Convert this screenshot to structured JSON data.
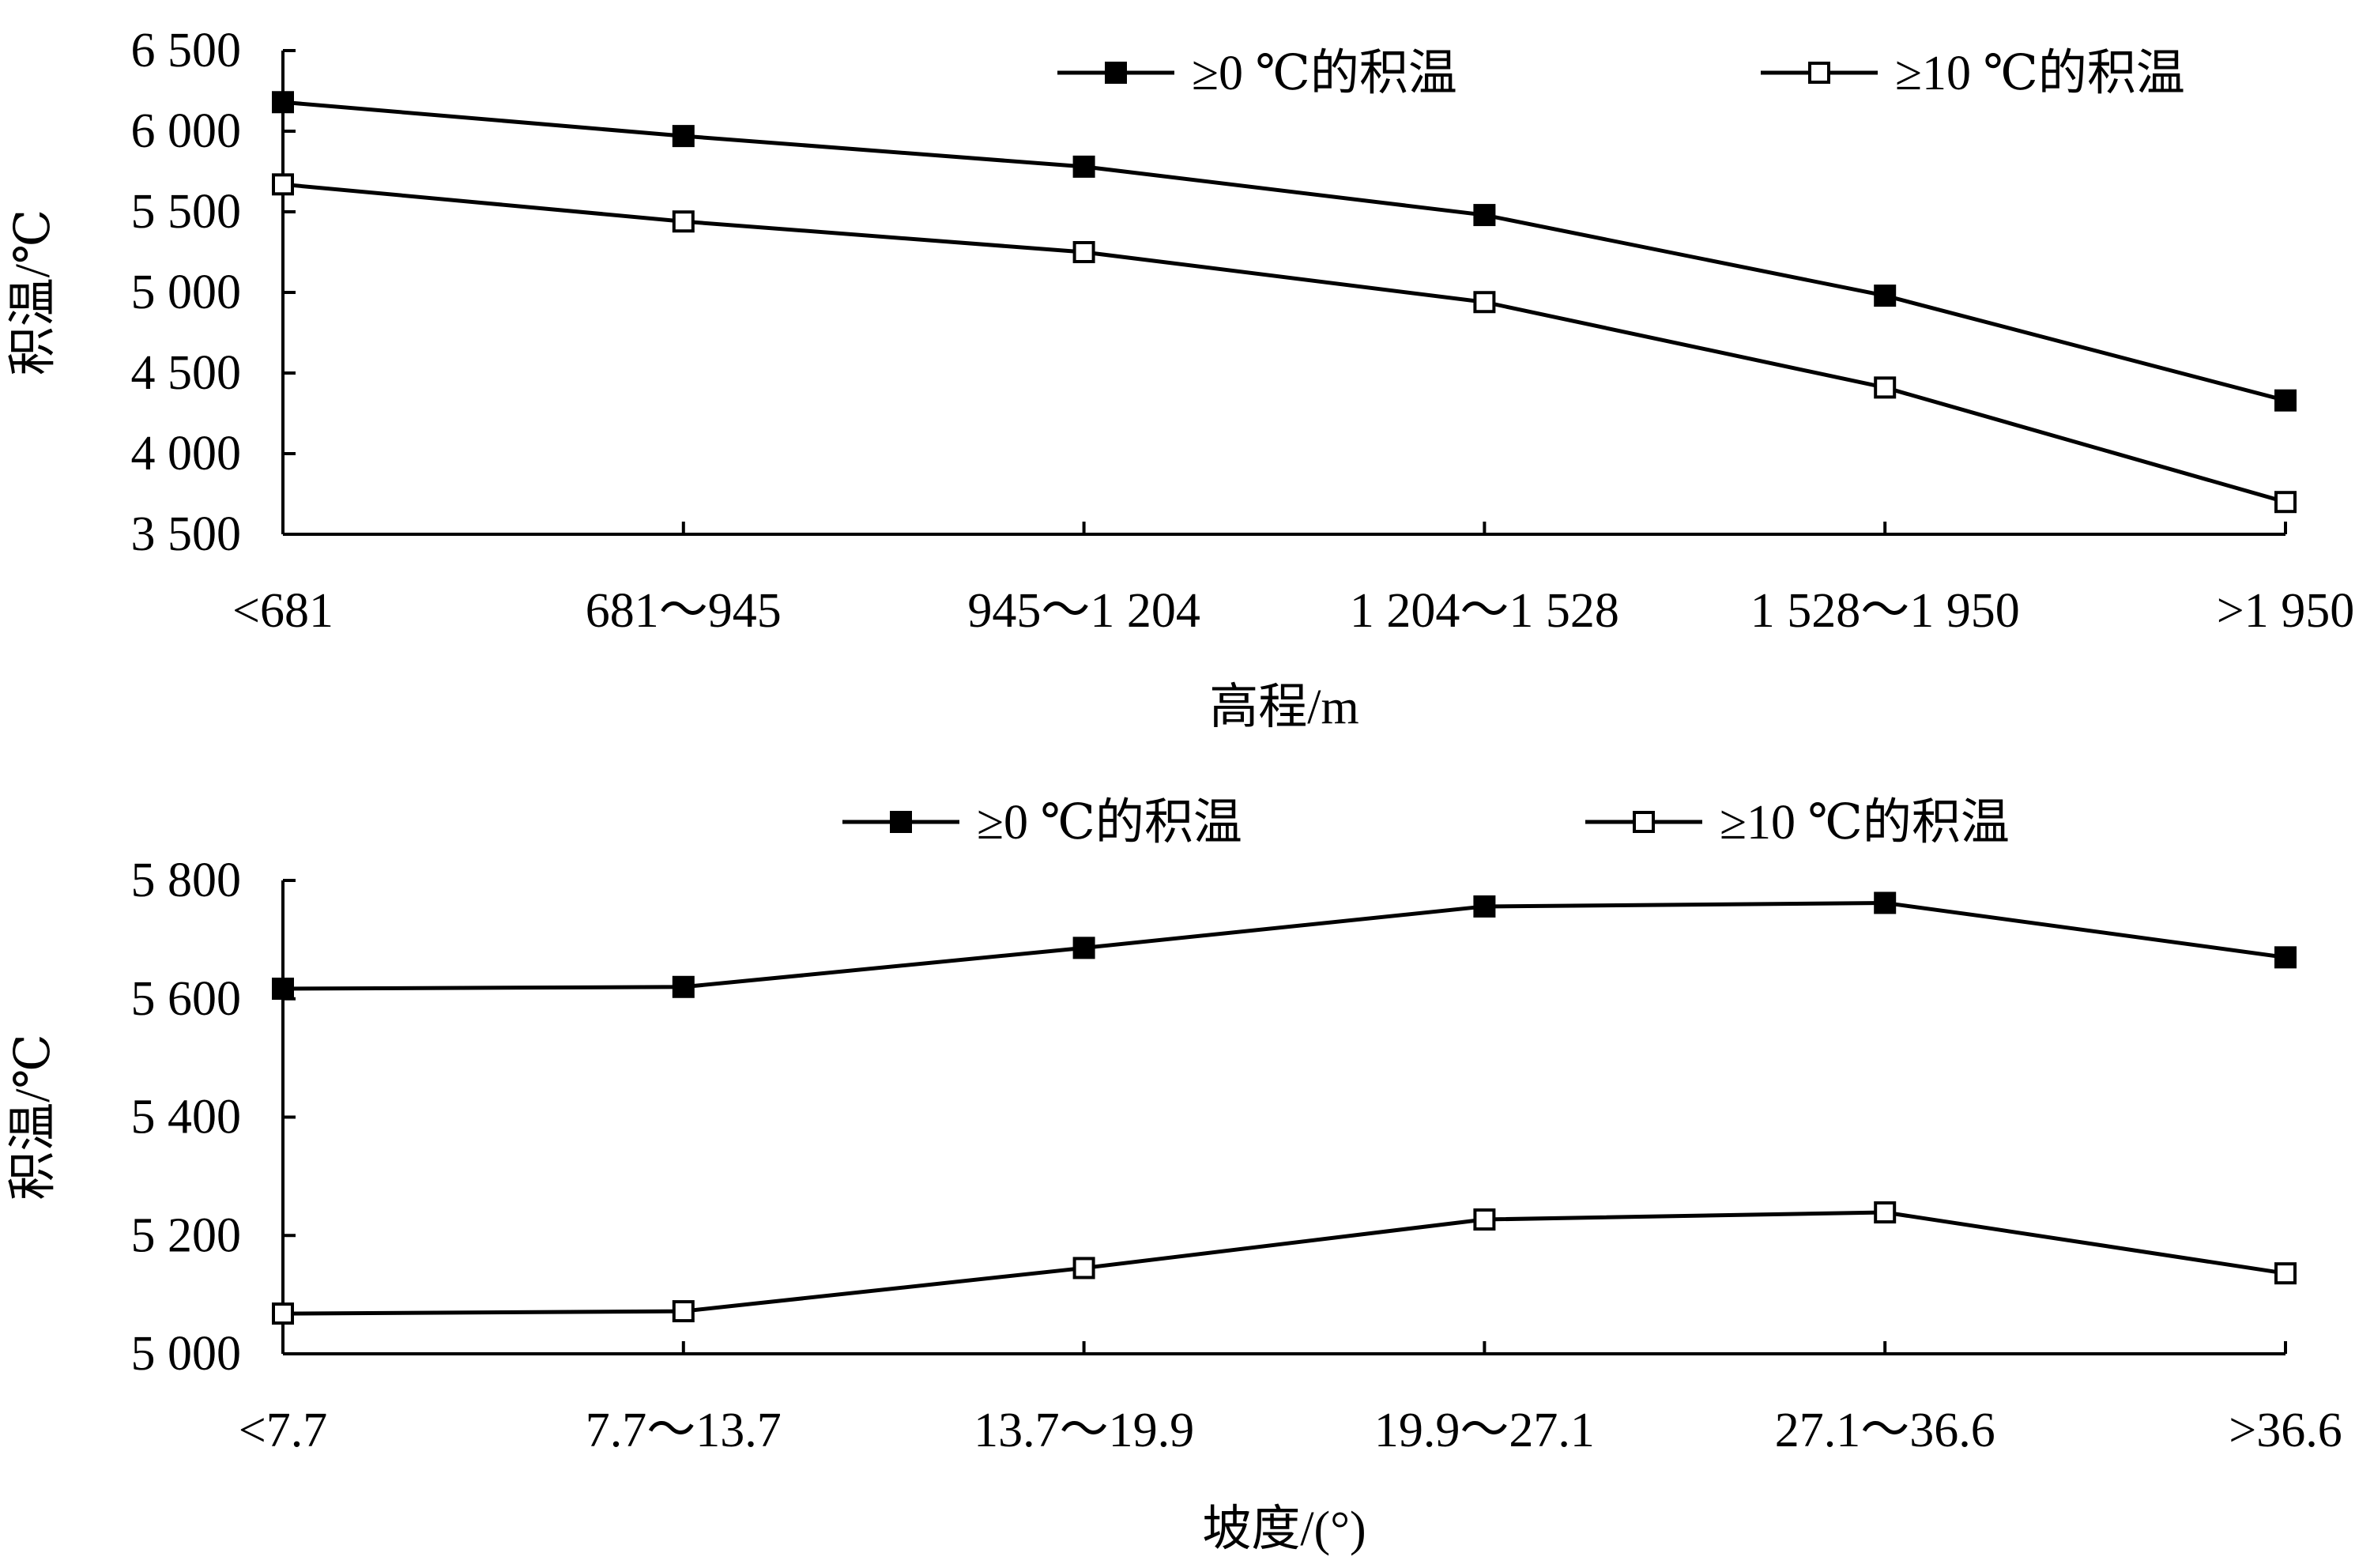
{
  "chart_data": [
    {
      "type": "line",
      "categories": [
        "<681",
        "681～945",
        "945～1 204",
        "1 204～1 528",
        "1 528～1 950",
        ">1 950"
      ],
      "xlabel": "高程/m",
      "ylabel": "积温/℃",
      "ylim": [
        3500,
        6500
      ],
      "yticks": [
        3500,
        4000,
        4500,
        5000,
        5500,
        6000,
        6500
      ],
      "ytick_labels": [
        "3 500",
        "4 000",
        "4 500",
        "5 000",
        "5 500",
        "6 000",
        "6 500"
      ],
      "grid": false,
      "legend_position": "top",
      "series": [
        {
          "name": "≥0 ℃的积温",
          "marker": "filled-square",
          "values": [
            6180,
            5970,
            5780,
            5480,
            4980,
            4330
          ]
        },
        {
          "name": "≥10 ℃的积温",
          "marker": "open-square",
          "values": [
            5670,
            5440,
            5250,
            4940,
            4410,
            3700
          ]
        }
      ]
    },
    {
      "type": "line",
      "categories": [
        "<7.7",
        "7.7～13.7",
        "13.7～19.9",
        "19.9～27.1",
        "27.1～36.6",
        ">36.6"
      ],
      "xlabel": "坡度/(°)",
      "ylabel": "积温/℃",
      "ylim": [
        5000,
        5800
      ],
      "yticks": [
        5000,
        5200,
        5400,
        5600,
        5800
      ],
      "ytick_labels": [
        "5 000",
        "5 200",
        "5 400",
        "5 600",
        "5 800"
      ],
      "grid": false,
      "legend_position": "top",
      "series": [
        {
          "name": "≥0 ℃的积温",
          "marker": "filled-square",
          "values": [
            5617,
            5620,
            5686,
            5756,
            5762,
            5670
          ]
        },
        {
          "name": "≥10 ℃的积温",
          "marker": "open-square",
          "values": [
            5068,
            5072,
            5145,
            5227,
            5239,
            5136
          ]
        }
      ]
    }
  ]
}
